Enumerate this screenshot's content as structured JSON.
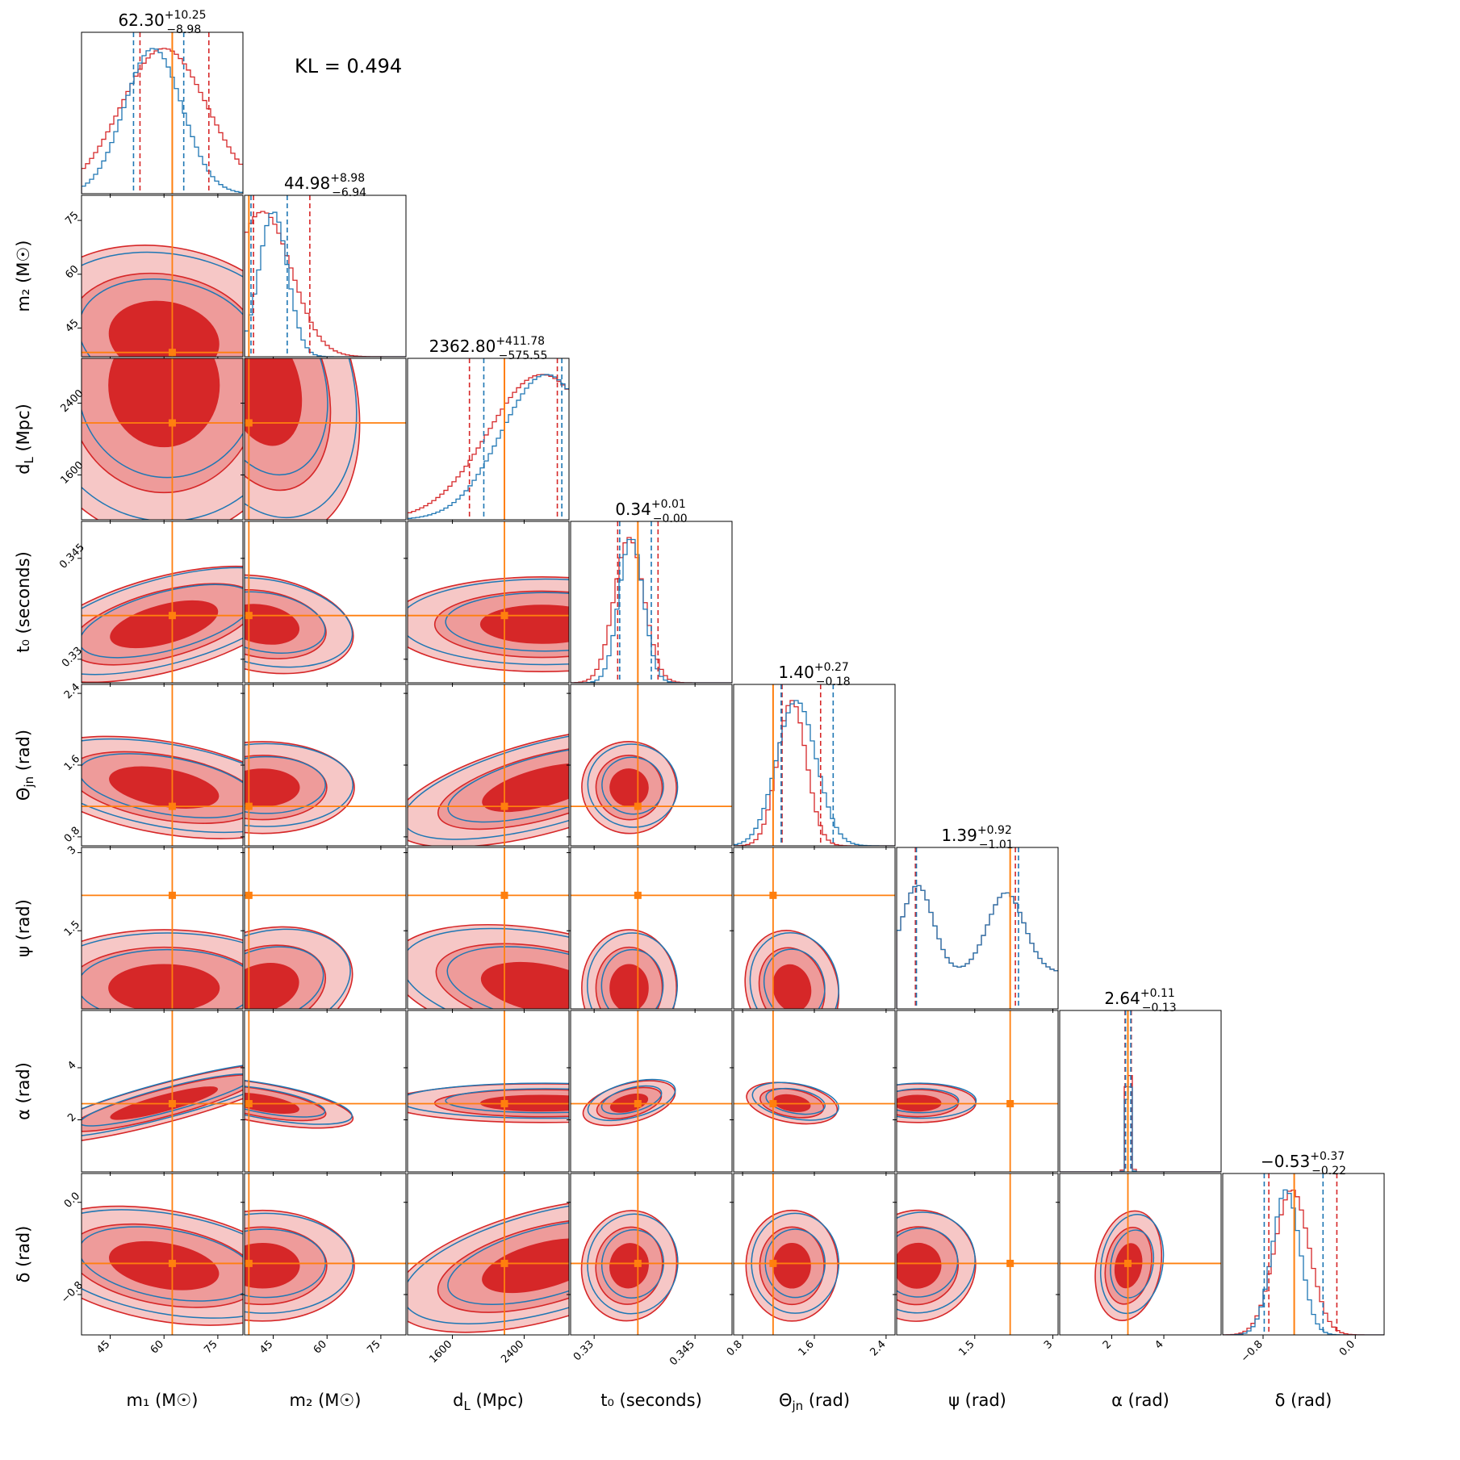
{
  "kl_text": "KL = 0.494",
  "chart_data": {
    "type": "corner",
    "title": "",
    "colors": {
      "posterior_a": "#d62728",
      "posterior_b": "#1f77b4",
      "truth": "#ff7f0e"
    },
    "parameters": [
      {
        "key": "m1",
        "label": "m₁ (M☉)",
        "range": [
          37,
          82
        ],
        "ticks": [
          45,
          60,
          75
        ],
        "truth": 62.3,
        "median": "62.30",
        "plus": "+10.25",
        "minus": "−8.98",
        "qa": [
          53.3,
          72.5
        ],
        "qb": [
          51.5,
          65.5
        ],
        "pa": [
          60,
          12
        ],
        "pb": [
          57,
          8
        ]
      },
      {
        "key": "m2",
        "label": "m₂ (M☉)",
        "range": [
          37,
          82
        ],
        "ticks": [
          45,
          60,
          75
        ],
        "truth": 38.2,
        "median": "44.98",
        "plus": "+8.98",
        "minus": "−6.94",
        "qa": [
          39.5,
          55.2
        ],
        "qb": [
          38.8,
          48.9
        ],
        "pa": [
          42,
          8
        ],
        "pb": [
          45,
          4
        ]
      },
      {
        "key": "dL",
        "label": "d_L (Mpc)",
        "range": [
          1100,
          2900
        ],
        "ticks": [
          1600,
          2400
        ],
        "truth": 2180,
        "median": "2362.80",
        "plus": "+411.78",
        "minus": "−575.55",
        "qa": [
          1790,
          2770
        ],
        "qb": [
          1950,
          2820
        ],
        "pa": [
          2600,
          600
        ],
        "pb": [
          2650,
          500
        ]
      },
      {
        "key": "t0",
        "label": "t₀ (seconds)",
        "range": [
          0.3265,
          0.3505
        ],
        "ticks": [
          0.33,
          0.345
        ],
        "truth": 0.3365,
        "median": "0.34",
        "plus": "+0.01",
        "minus": "−0.00",
        "qa": [
          0.3335,
          0.3395
        ],
        "qb": [
          0.3338,
          0.3385
        ],
        "pa": [
          0.3352,
          0.0022
        ],
        "pb": [
          0.3355,
          0.0018
        ]
      },
      {
        "key": "theta",
        "label": "Θ_jn (rad)",
        "range": [
          0.7,
          2.5
        ],
        "ticks": [
          0.8,
          1.6,
          2.4
        ],
        "truth": 1.14,
        "median": "1.40",
        "plus": "+0.27",
        "minus": "−0.18",
        "qa": [
          1.24,
          1.67
        ],
        "qb": [
          1.23,
          1.81
        ],
        "pa": [
          1.35,
          0.16
        ],
        "pb": [
          1.4,
          0.22
        ]
      },
      {
        "key": "psi",
        "label": "ψ (rad)",
        "range": [
          0.0,
          3.1
        ],
        "ticks": [
          1.5,
          3.0
        ],
        "truth": 2.18,
        "median": "1.39",
        "plus": "+0.92",
        "minus": "−1.01",
        "qa": [
          0.36,
          2.28
        ],
        "qb": [
          0.38,
          2.34
        ],
        "pa": [
          0.4,
          0.35
        ],
        "pb": [
          2.05,
          0.4
        ]
      },
      {
        "key": "alpha",
        "label": "α (rad)",
        "range": [
          0.0,
          6.2
        ],
        "ticks": [
          2,
          4
        ],
        "truth": 2.62,
        "median": "2.64",
        "plus": "+0.11",
        "minus": "−0.13",
        "qa": [
          2.51,
          2.75
        ],
        "qb": [
          2.53,
          2.73
        ],
        "pa": [
          2.64,
          0.08
        ],
        "pb": [
          2.64,
          0.07
        ]
      },
      {
        "key": "delta",
        "label": "δ (rad)",
        "range": [
          -1.15,
          0.25
        ],
        "ticks": [
          -0.8,
          0.0
        ],
        "truth": -0.53,
        "median": "−0.53",
        "plus": "+0.37",
        "minus": "−0.22",
        "qa": [
          -0.75,
          -0.16
        ],
        "qb": [
          -0.79,
          -0.28
        ],
        "pa": [
          -0.55,
          0.15
        ],
        "pb": [
          -0.6,
          0.12
        ]
      }
    ]
  }
}
